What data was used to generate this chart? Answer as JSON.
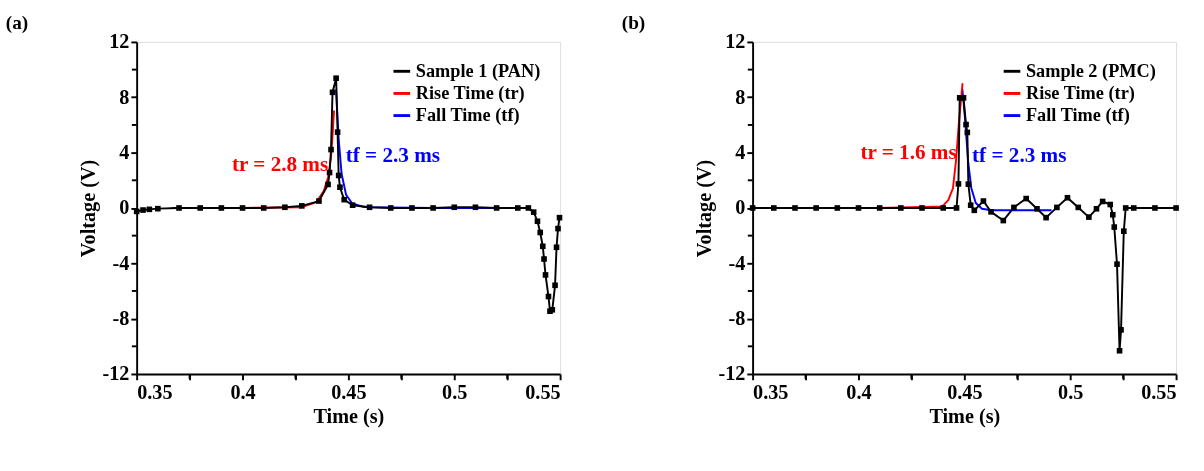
{
  "chart_data": [
    {
      "type": "line",
      "title": "(a)",
      "xlabel": "Time (s)",
      "ylabel": "Voltage (V)",
      "xlim": [
        0.35,
        0.55
      ],
      "ylim": [
        -12,
        12
      ],
      "xticks": [
        0.35,
        {
          "value": 0.375,
          "label": null
        },
        0.4,
        {
          "value": 0.425,
          "label": null
        },
        0.45,
        {
          "value": 0.475,
          "label": null
        },
        0.5,
        {
          "value": 0.525,
          "label": null
        },
        0.55
      ],
      "yticks": [
        -12,
        {
          "value": -10,
          "label": null
        },
        -8,
        {
          "value": -6,
          "label": null
        },
        -4,
        {
          "value": -2,
          "label": null
        },
        0,
        {
          "value": 2,
          "label": null
        },
        4,
        {
          "value": 6,
          "label": null
        },
        8,
        {
          "value": 10,
          "label": null
        },
        12
      ],
      "grid": false,
      "legend": "top right",
      "series": [
        {
          "name": "Sample 1 (PAN)",
          "color": "#000000",
          "marker": "square",
          "line_style": "solid",
          "x": [
            0.35,
            0.353,
            0.356,
            0.36,
            0.37,
            0.38,
            0.39,
            0.4,
            0.41,
            0.42,
            0.428,
            0.4361,
            0.4404,
            0.4411,
            0.4418,
            0.4425,
            0.4442,
            0.4449,
            0.4454,
            0.446,
            0.448,
            0.452,
            0.46,
            0.47,
            0.48,
            0.49,
            0.5,
            0.51,
            0.52,
            0.53,
            0.535,
            0.5375,
            0.5393,
            0.5406,
            0.5418,
            0.5424,
            0.5431,
            0.5445,
            0.5452,
            0.5463,
            0.5476,
            0.5483,
            0.549,
            0.5497
          ],
          "values": [
            -0.25,
            -0.15,
            -0.1,
            -0.05,
            0,
            0,
            0,
            0,
            0,
            0.05,
            0.15,
            0.5,
            1.7,
            2.56,
            4.22,
            8.36,
            9.38,
            5.48,
            2.35,
            1.5,
            0.6,
            0.2,
            0.05,
            0,
            0,
            0,
            0.05,
            0.05,
            0,
            0,
            0,
            -0.3,
            -0.96,
            -1.77,
            -2.77,
            -3.69,
            -4.84,
            -6.4,
            -7.46,
            -7.36,
            -5.59,
            -2.84,
            -1.49,
            -0.7
          ]
        },
        {
          "name": "Rise Time (tr)",
          "color": "#ff0000",
          "marker": "none",
          "line_style": "solid",
          "x": [
            0.3668,
            0.4,
            0.4276,
            0.4347,
            0.4383,
            0.4404,
            0.4418,
            0.4425,
            0.4432
          ],
          "values": [
            0,
            0,
            0.05,
            0.4,
            1.2,
            2.2,
            3.7,
            5.2,
            7.0
          ]
        },
        {
          "name": "Fall Time (tf)",
          "color": "#0000ff",
          "marker": "none",
          "line_style": "solid",
          "x": [
            0.4442,
            0.4454,
            0.4468,
            0.4489,
            0.4518,
            0.4575,
            0.49,
            0.5215
          ],
          "values": [
            8.5,
            5.0,
            2.45,
            0.96,
            0.32,
            0.06,
            0,
            0
          ]
        }
      ],
      "annotations": [
        "tr = 2.8 ms",
        "tf = 2.3 ms"
      ]
    },
    {
      "type": "line",
      "title": "(b)",
      "xlabel": "Time (s)",
      "ylabel": "Voltage (V)",
      "xlim": [
        0.35,
        0.55
      ],
      "ylim": [
        -12,
        12
      ],
      "xticks": [
        0.35,
        {
          "value": 0.375,
          "label": null
        },
        0.4,
        {
          "value": 0.425,
          "label": null
        },
        0.45,
        {
          "value": 0.475,
          "label": null
        },
        0.5,
        {
          "value": 0.525,
          "label": null
        },
        0.55
      ],
      "yticks": [
        -12,
        {
          "value": -10,
          "label": null
        },
        -8,
        {
          "value": -6,
          "label": null
        },
        -4,
        {
          "value": -2,
          "label": null
        },
        0,
        {
          "value": 2,
          "label": null
        },
        4,
        {
          "value": 6,
          "label": null
        },
        8,
        {
          "value": 10,
          "label": null
        },
        12
      ],
      "grid": false,
      "legend": "top right",
      "series": [
        {
          "name": "Sample 2 (PMC)",
          "color": "#000000",
          "marker": "square",
          "line_style": "solid",
          "x": [
            0.35,
            0.36,
            0.37,
            0.38,
            0.39,
            0.4,
            0.41,
            0.42,
            0.43,
            0.44,
            0.4463,
            0.4472,
            0.4478,
            0.4496,
            0.4508,
            0.4514,
            0.4519,
            0.453,
            0.4547,
            0.459,
            0.4626,
            0.4684,
            0.4734,
            0.4792,
            0.4843,
            0.4886,
            0.4937,
            0.4987,
            0.5038,
            0.5088,
            0.5124,
            0.5153,
            0.5189,
            0.5201,
            0.5208,
            0.5221,
            0.5233,
            0.524,
            0.5253,
            0.5262,
            0.53,
            0.54,
            0.55
          ],
          "values": [
            0,
            0,
            0,
            0,
            0,
            0,
            0,
            0,
            0,
            0,
            0,
            1.74,
            7.96,
            7.96,
            6.03,
            5.46,
            1.72,
            0.2,
            -0.17,
            0.5,
            -0.28,
            -0.91,
            0.04,
            0.68,
            -0.06,
            -0.7,
            0.04,
            0.74,
            0.04,
            -0.66,
            -0.06,
            0.47,
            0.25,
            -0.49,
            -1.38,
            -4.06,
            -10.32,
            -8.81,
            -1.68,
            0,
            0,
            0,
            0
          ]
        },
        {
          "name": "Rise Time (tr)",
          "color": "#ff0000",
          "marker": "none",
          "line_style": "solid",
          "x": [
            0.3757,
            0.41,
            0.4395,
            0.4424,
            0.4446,
            0.446,
            0.4475,
            0.4491
          ],
          "values": [
            0,
            0,
            0.1,
            0.57,
            1.42,
            3.33,
            6.3,
            8.96
          ]
        },
        {
          "name": "Fall Time (tf)",
          "color": "#0000ff",
          "marker": "none",
          "line_style": "solid",
          "x": [
            0.4491,
            0.4504,
            0.4518,
            0.4533,
            0.4554,
            0.4583,
            0.4626,
            0.4908
          ],
          "values": [
            8.54,
            6.3,
            3.33,
            1.42,
            0.36,
            -0.06,
            -0.17,
            -0.17
          ]
        }
      ],
      "annotations": [
        "tr = 1.6 ms",
        "tf = 2.3 ms"
      ]
    }
  ]
}
